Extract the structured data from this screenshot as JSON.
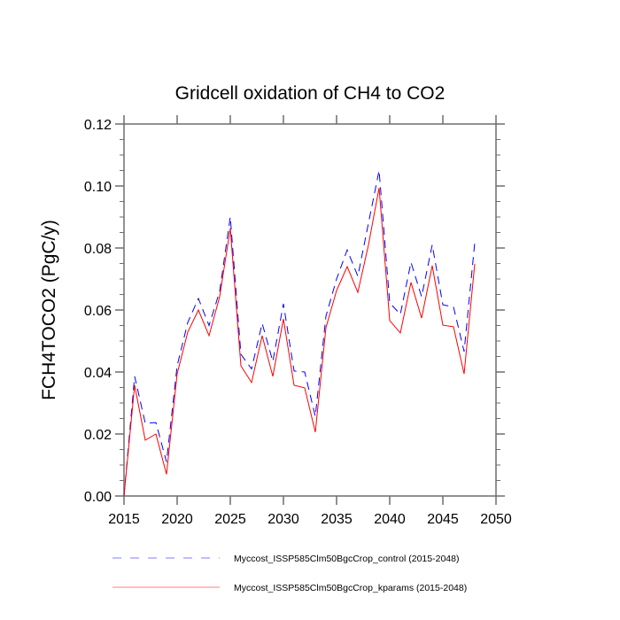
{
  "chart_data": {
    "type": "line",
    "title": "Gridcell oxidation of CH4 to CO2",
    "xlabel": "",
    "ylabel": "FCH4TOCO2  (PgC/y)",
    "xlim": [
      2015,
      2050
    ],
    "ylim": [
      0.0,
      0.12
    ],
    "x_ticks": [
      2015,
      2020,
      2025,
      2030,
      2035,
      2040,
      2045,
      2050
    ],
    "y_ticks": [
      0.0,
      0.02,
      0.04,
      0.06,
      0.08,
      0.1,
      0.12
    ],
    "x_tick_labels": [
      "2015",
      "2020",
      "2025",
      "2030",
      "2035",
      "2040",
      "2045",
      "2050"
    ],
    "y_tick_labels": [
      "0.00",
      "0.02",
      "0.04",
      "0.06",
      "0.08",
      "0.10",
      "0.12"
    ],
    "grid": false,
    "legend_position": "bottom",
    "x": [
      2015,
      2016,
      2017,
      2018,
      2019,
      2020,
      2021,
      2022,
      2023,
      2024,
      2025,
      2026,
      2027,
      2028,
      2029,
      2030,
      2031,
      2032,
      2033,
      2034,
      2035,
      2036,
      2037,
      2038,
      2039,
      2040,
      2041,
      2042,
      2043,
      2044,
      2045,
      2046,
      2047,
      2048
    ],
    "series": [
      {
        "name": "Myccost_ISSP585Clm50BgcCrop_control (2015-2048)",
        "color": "#0000ff",
        "style": "dashed",
        "values": [
          0.0,
          0.0386,
          0.0235,
          0.0237,
          0.011,
          0.042,
          0.056,
          0.0637,
          0.055,
          0.066,
          0.09,
          0.0457,
          0.041,
          0.0557,
          0.0434,
          0.062,
          0.0403,
          0.04,
          0.0257,
          0.058,
          0.07,
          0.0794,
          0.0709,
          0.088,
          0.105,
          0.0623,
          0.0586,
          0.0754,
          0.0643,
          0.081,
          0.0617,
          0.061,
          0.0466,
          0.0817
        ]
      },
      {
        "name": "Myccost_ISSP585Clm50BgcCrop_kparams (2015-2048)",
        "color": "#ff0000",
        "style": "solid",
        "values": [
          0.0,
          0.0357,
          0.018,
          0.02,
          0.007,
          0.0394,
          0.0529,
          0.06,
          0.0517,
          0.0643,
          0.0863,
          0.042,
          0.0366,
          0.0517,
          0.0386,
          0.0571,
          0.0357,
          0.0349,
          0.0206,
          0.0543,
          0.0663,
          0.074,
          0.0657,
          0.081,
          0.0994,
          0.0566,
          0.0526,
          0.0689,
          0.0574,
          0.0743,
          0.0551,
          0.0546,
          0.0394,
          0.0749
        ]
      }
    ]
  }
}
